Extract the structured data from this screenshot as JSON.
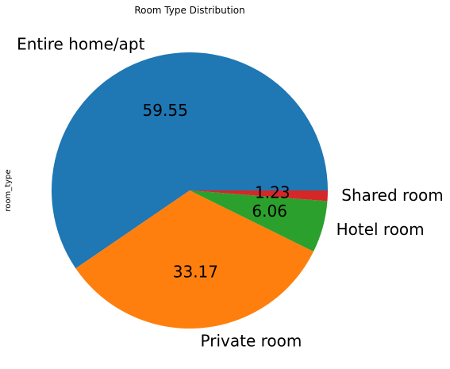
{
  "chart_data": {
    "type": "pie",
    "title": "Room Type Distribution",
    "ylabel": "room_type",
    "slices": [
      {
        "label": "Entire home/apt",
        "value": 59.55,
        "value_label": "59.55",
        "color": "#1f77b4"
      },
      {
        "label": "Private room",
        "value": 33.17,
        "value_label": "33.17",
        "color": "#ff7f0e"
      },
      {
        "label": "Hotel room",
        "value": 6.06,
        "value_label": "6.06",
        "color": "#2ca02c"
      },
      {
        "label": "Shared room",
        "value": 1.23,
        "value_label": "1.23",
        "color": "#d62728"
      }
    ],
    "legend": "none"
  }
}
